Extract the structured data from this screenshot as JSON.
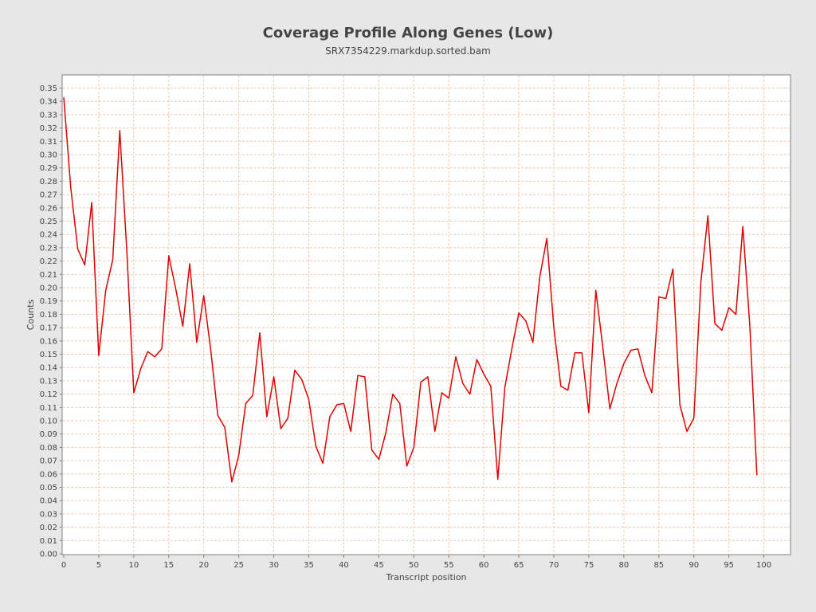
{
  "chart_data": {
    "type": "line",
    "title": "Coverage Profile Along Genes (Low)",
    "subtitle": "SRX7354229.markdup.sorted.bam",
    "xlabel": "Transcript position",
    "ylabel": "Counts",
    "xlim": [
      0,
      104
    ],
    "ylim": [
      0,
      0.36
    ],
    "grid": true,
    "series": [
      {
        "color": "#e00000",
        "x": [
          0,
          1,
          2,
          3,
          4,
          5,
          6,
          7,
          8,
          9,
          10,
          11,
          12,
          13,
          14,
          15,
          16,
          17,
          18,
          19,
          20,
          21,
          22,
          23,
          24,
          25,
          26,
          27,
          28,
          29,
          30,
          31,
          32,
          33,
          34,
          35,
          36,
          37,
          38,
          39,
          40,
          41,
          42,
          43,
          44,
          45,
          46,
          47,
          48,
          49,
          50,
          51,
          52,
          53,
          54,
          55,
          56,
          57,
          58,
          59,
          60,
          61,
          62,
          63,
          64,
          65,
          66,
          67,
          68,
          69,
          70,
          71,
          72,
          73,
          74,
          75,
          76,
          77,
          78,
          79,
          80,
          81,
          82,
          83,
          84,
          85,
          86,
          87,
          88,
          89,
          90,
          91,
          92,
          93,
          94,
          95,
          96,
          97,
          98,
          99
        ],
        "values": [
          0.343,
          0.275,
          0.229,
          0.217,
          0.264,
          0.149,
          0.198,
          0.221,
          0.318,
          0.228,
          0.121,
          0.139,
          0.152,
          0.148,
          0.154,
          0.224,
          0.199,
          0.171,
          0.218,
          0.159,
          0.194,
          0.153,
          0.104,
          0.095,
          0.054,
          0.074,
          0.113,
          0.119,
          0.166,
          0.103,
          0.133,
          0.094,
          0.102,
          0.138,
          0.131,
          0.116,
          0.081,
          0.068,
          0.103,
          0.112,
          0.113,
          0.092,
          0.134,
          0.133,
          0.078,
          0.071,
          0.091,
          0.12,
          0.113,
          0.066,
          0.08,
          0.129,
          0.133,
          0.092,
          0.121,
          0.117,
          0.148,
          0.128,
          0.12,
          0.146,
          0.135,
          0.126,
          0.056,
          0.125,
          0.154,
          0.181,
          0.175,
          0.159,
          0.208,
          0.237,
          0.17,
          0.126,
          0.123,
          0.151,
          0.151,
          0.106,
          0.198,
          0.155,
          0.109,
          0.128,
          0.143,
          0.153,
          0.154,
          0.134,
          0.121,
          0.193,
          0.192,
          0.214,
          0.112,
          0.092,
          0.102,
          0.204,
          0.254,
          0.173,
          0.168,
          0.185,
          0.18,
          0.246,
          0.171,
          0.059
        ]
      }
    ],
    "xticks": [
      0,
      5,
      10,
      15,
      20,
      25,
      30,
      35,
      40,
      45,
      50,
      55,
      60,
      65,
      70,
      75,
      80,
      85,
      90,
      95,
      100
    ],
    "yticks": [
      "0.00",
      "0.01",
      "0.02",
      "0.03",
      "0.04",
      "0.05",
      "0.06",
      "0.07",
      "0.08",
      "0.09",
      "0.10",
      "0.11",
      "0.12",
      "0.13",
      "0.14",
      "0.15",
      "0.16",
      "0.17",
      "0.18",
      "0.19",
      "0.20",
      "0.21",
      "0.22",
      "0.23",
      "0.24",
      "0.25",
      "0.26",
      "0.27",
      "0.28",
      "0.29",
      "0.30",
      "0.31",
      "0.32",
      "0.33",
      "0.34",
      "0.35"
    ]
  }
}
